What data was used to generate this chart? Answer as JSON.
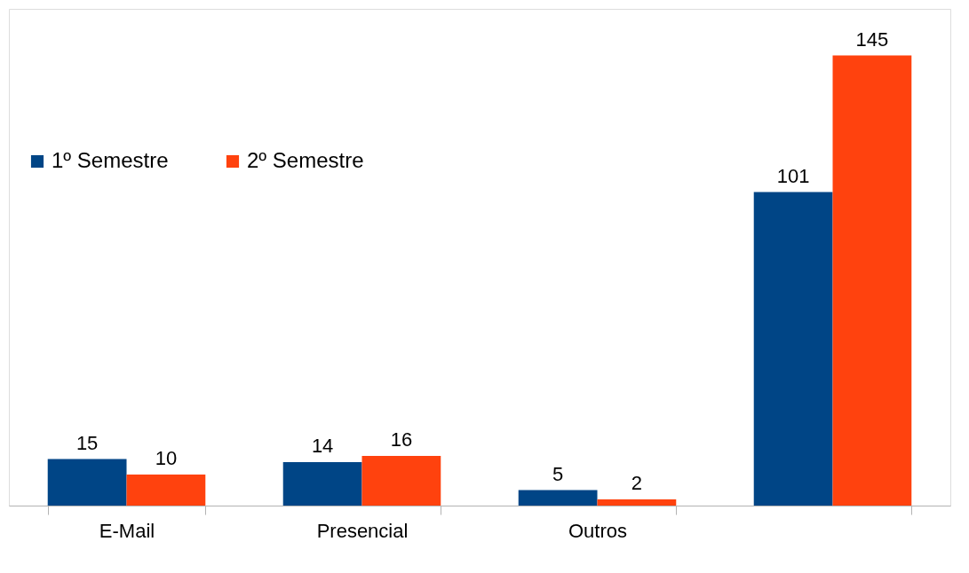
{
  "chart_data": {
    "type": "bar",
    "categories": [
      "E-Mail",
      "Presencial",
      "Outros",
      null
    ],
    "series": [
      {
        "name": "1º Semestre",
        "color": "#004586",
        "values": [
          15,
          14,
          5,
          101
        ]
      },
      {
        "name": "2º Semestre",
        "color": "#ff420e",
        "values": [
          10,
          16,
          2,
          145
        ]
      }
    ],
    "data_labels": true,
    "legend": "top left",
    "grid": false
  }
}
